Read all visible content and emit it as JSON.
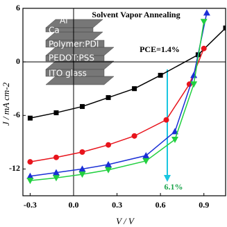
{
  "chart_data": {
    "type": "line",
    "title": "Solvent Vapor Annealing",
    "x_label": "V / V",
    "y_label": "J / mA cm-2",
    "xlim": [
      -0.35,
      1.05
    ],
    "ylim": [
      -15,
      6
    ],
    "xticks": [
      {
        "value": -0.3,
        "label": "-0.3"
      },
      {
        "value": 0,
        "label": "0.0"
      },
      {
        "value": 0.3,
        "label": "0.3"
      },
      {
        "value": 0.6,
        "label": "0.6"
      },
      {
        "value": 0.9,
        "label": "0.9"
      }
    ],
    "yticks": [
      -12,
      -6,
      0,
      6
    ],
    "annotations": [
      "PCE=1.4%",
      "6.1%"
    ],
    "layers": [
      "Al",
      "Ca",
      "Polymer:PDI",
      "PEDOT:PSS",
      "ITO glass"
    ],
    "series": [
      {
        "marker": "square",
        "color": "#000000",
        "x": [
          -0.3,
          -0.12,
          0.06,
          0.24,
          0.42,
          0.6,
          0.86,
          1.05
        ],
        "values": [
          -6.3,
          -5.7,
          -5.0,
          -4.0,
          -3.0,
          -1.5,
          0.8,
          3.8
        ]
      },
      {
        "marker": "circle",
        "color": "#e8141c",
        "x": [
          -0.3,
          -0.12,
          0.06,
          0.24,
          0.42,
          0.64,
          0.8,
          0.9
        ],
        "values": [
          -11.2,
          -10.7,
          -10.1,
          -9.3,
          -8.3,
          -6.5,
          -2.5,
          1.5
        ]
      },
      {
        "marker": "triangle",
        "color": "#1a2fd6",
        "x": [
          -0.3,
          -0.12,
          0.06,
          0.24,
          0.5,
          0.7,
          0.83,
          0.92
        ],
        "values": [
          -12.8,
          -12.4,
          -12.0,
          -11.5,
          -10.5,
          -7.8,
          -1.5,
          5.5
        ]
      },
      {
        "marker": "tri-down",
        "color": "#22d040",
        "x": [
          -0.3,
          -0.12,
          0.06,
          0.24,
          0.5,
          0.7,
          0.83,
          0.9
        ],
        "values": [
          -13.3,
          -13.0,
          -12.6,
          -12.1,
          -11.1,
          -8.7,
          -2.5,
          4.5
        ]
      }
    ]
  }
}
